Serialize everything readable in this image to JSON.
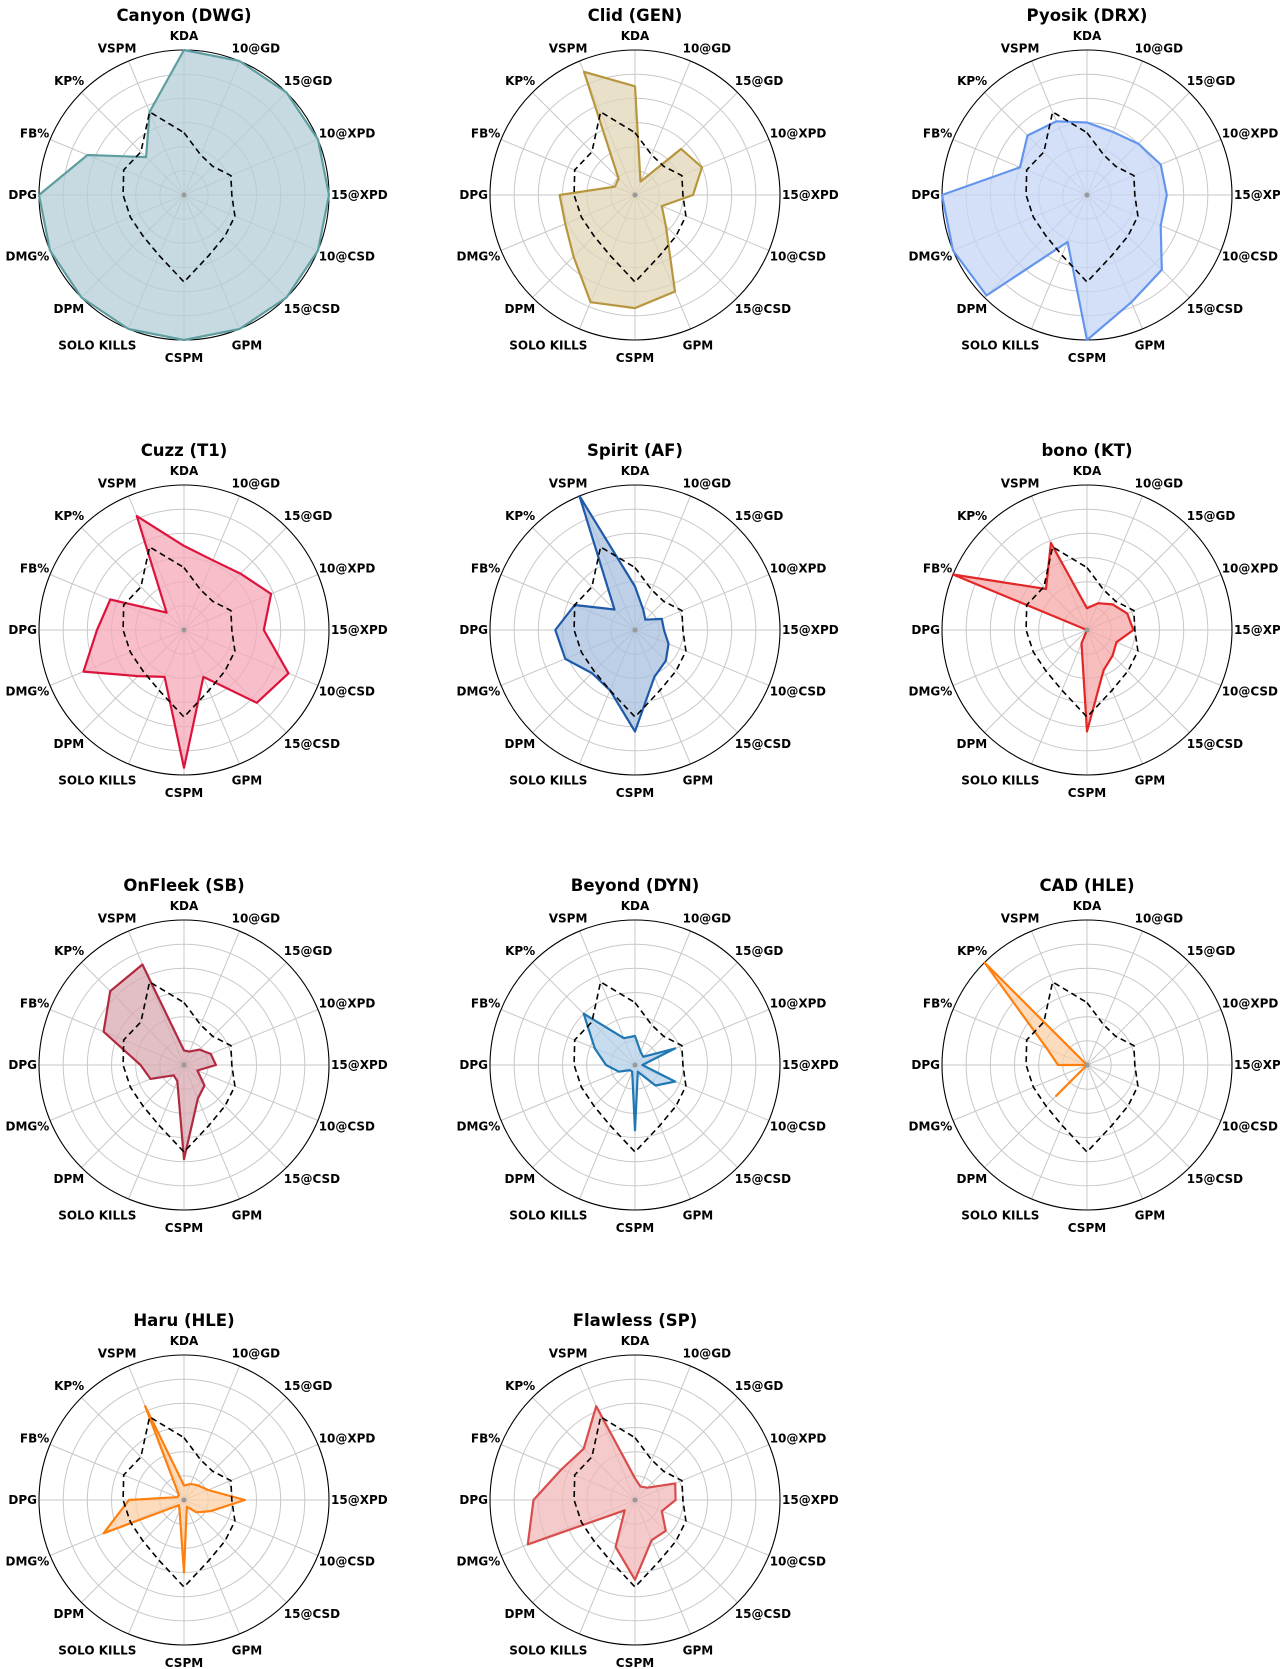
{
  "axes": [
    "KDA",
    "10@GD",
    "15@GD",
    "10@XPD",
    "15@XPD",
    "10@CSD",
    "15@CSD",
    "GPM",
    "CSPM",
    "SOLO KILLS",
    "DPM",
    "DMG%",
    "DPG",
    "FB%",
    "KP%",
    "VSPM"
  ],
  "chart_data": [
    {
      "type": "radar",
      "title": "Canyon (DWG)",
      "color": "#5f9ea0",
      "fill": "#b4cdd7",
      "values": [
        1.0,
        1.0,
        1.0,
        1.0,
        1.0,
        1.0,
        1.0,
        1.0,
        1.0,
        1.0,
        1.0,
        1.0,
        1.0,
        0.72,
        0.37,
        0.62
      ],
      "average": [
        0.43,
        0.3,
        0.28,
        0.35,
        0.33,
        0.38,
        0.4,
        0.45,
        0.6,
        0.45,
        0.4,
        0.4,
        0.42,
        0.45,
        0.42,
        0.62
      ]
    },
    {
      "type": "radar",
      "title": "Clid (GEN)",
      "color": "#b8963e",
      "fill": "#e2d5b8",
      "values": [
        0.75,
        0.1,
        0.45,
        0.5,
        0.4,
        0.2,
        0.3,
        0.72,
        0.78,
        0.8,
        0.6,
        0.52,
        0.52,
        0.15,
        0.16,
        0.92
      ],
      "average": [
        0.43,
        0.3,
        0.28,
        0.35,
        0.33,
        0.38,
        0.4,
        0.45,
        0.6,
        0.45,
        0.4,
        0.4,
        0.42,
        0.45,
        0.42,
        0.62
      ]
    },
    {
      "type": "radar",
      "title": "Pyosik (DRX)",
      "color": "#6495ed",
      "fill": "#c5d5f5",
      "values": [
        0.5,
        0.47,
        0.5,
        0.55,
        0.55,
        0.55,
        0.73,
        0.8,
        1.0,
        0.35,
        0.98,
        1.0,
        1.0,
        0.5,
        0.58,
        0.55
      ],
      "average": [
        0.43,
        0.3,
        0.28,
        0.35,
        0.33,
        0.38,
        0.4,
        0.45,
        0.6,
        0.45,
        0.4,
        0.4,
        0.42,
        0.45,
        0.42,
        0.62
      ]
    },
    {
      "type": "radar",
      "title": "Cuzz (T1)",
      "color": "#dc143c",
      "fill": "#f5a8b8",
      "values": [
        0.58,
        0.52,
        0.55,
        0.65,
        0.55,
        0.78,
        0.71,
        0.35,
        0.95,
        0.35,
        0.45,
        0.75,
        0.6,
        0.55,
        0.17,
        0.85
      ],
      "average": [
        0.43,
        0.3,
        0.28,
        0.35,
        0.33,
        0.38,
        0.4,
        0.45,
        0.6,
        0.45,
        0.4,
        0.4,
        0.42,
        0.45,
        0.42,
        0.62
      ]
    },
    {
      "type": "radar",
      "title": "Spirit (AF)",
      "color": "#1f5aa8",
      "fill": "#a8c0e0",
      "values": [
        0.3,
        0.15,
        0.1,
        0.2,
        0.2,
        0.25,
        0.3,
        0.35,
        0.7,
        0.45,
        0.42,
        0.52,
        0.55,
        0.45,
        0.2,
        1.0
      ],
      "average": [
        0.43,
        0.3,
        0.28,
        0.35,
        0.33,
        0.38,
        0.4,
        0.45,
        0.6,
        0.45,
        0.4,
        0.4,
        0.42,
        0.45,
        0.42,
        0.62
      ]
    },
    {
      "type": "radar",
      "title": "bono (KT)",
      "color": "#e32626",
      "fill": "#f5a8a8",
      "values": [
        0.15,
        0.2,
        0.25,
        0.3,
        0.32,
        0.22,
        0.25,
        0.3,
        0.7,
        0.1,
        0.0,
        0.0,
        0.0,
        1.0,
        0.4,
        0.65
      ],
      "average": [
        0.43,
        0.3,
        0.28,
        0.35,
        0.33,
        0.38,
        0.4,
        0.45,
        0.6,
        0.45,
        0.4,
        0.4,
        0.42,
        0.45,
        0.42,
        0.62
      ]
    },
    {
      "type": "radar",
      "title": "OnFleek (SB)",
      "color": "#b02a40",
      "fill": "#d8a8b2",
      "values": [
        0.1,
        0.1,
        0.15,
        0.2,
        0.22,
        0.1,
        0.2,
        0.25,
        0.65,
        0.12,
        0.1,
        0.25,
        0.3,
        0.6,
        0.72,
        0.75
      ],
      "average": [
        0.43,
        0.3,
        0.28,
        0.35,
        0.33,
        0.38,
        0.4,
        0.45,
        0.6,
        0.45,
        0.4,
        0.4,
        0.42,
        0.45,
        0.42,
        0.62
      ]
    },
    {
      "type": "radar",
      "title": "Beyond (DYN)",
      "color": "#1f77b4",
      "fill": "#b4d0ea",
      "values": [
        0.2,
        0.1,
        0.08,
        0.3,
        0.05,
        0.3,
        0.2,
        0.05,
        0.45,
        0.05,
        0.05,
        0.12,
        0.2,
        0.3,
        0.5,
        0.2
      ],
      "average": [
        0.43,
        0.3,
        0.28,
        0.35,
        0.33,
        0.38,
        0.4,
        0.45,
        0.6,
        0.45,
        0.4,
        0.4,
        0.42,
        0.45,
        0.42,
        0.62
      ]
    },
    {
      "type": "radar",
      "title": "CAD (HLE)",
      "color": "#ff7f0e",
      "fill": "#fcd0a8",
      "values": [
        0.0,
        0.0,
        0.0,
        0.0,
        0.0,
        0.0,
        0.0,
        0.0,
        0.0,
        0.0,
        0.3,
        0.0,
        0.2,
        0.3,
        1.0,
        0.0
      ],
      "average": [
        0.43,
        0.3,
        0.28,
        0.35,
        0.33,
        0.38,
        0.4,
        0.45,
        0.6,
        0.45,
        0.4,
        0.4,
        0.42,
        0.45,
        0.42,
        0.62
      ]
    },
    {
      "type": "radar",
      "title": "Haru (HLE)",
      "color": "#ff7f0e",
      "fill": "#fcd0a8",
      "values": [
        0.1,
        0.12,
        0.14,
        0.18,
        0.42,
        0.2,
        0.12,
        0.05,
        0.5,
        0.08,
        0.05,
        0.6,
        0.38,
        0.05,
        0.05,
        0.7
      ],
      "average": [
        0.43,
        0.3,
        0.28,
        0.35,
        0.33,
        0.38,
        0.4,
        0.45,
        0.6,
        0.45,
        0.4,
        0.4,
        0.42,
        0.45,
        0.42,
        0.62
      ]
    },
    {
      "type": "radar",
      "title": "Flawless (SP)",
      "color": "#d94c4c",
      "fill": "#f2b8b8",
      "values": [
        0.15,
        0.1,
        0.12,
        0.3,
        0.28,
        0.2,
        0.3,
        0.3,
        0.55,
        0.35,
        0.1,
        0.8,
        0.7,
        0.55,
        0.5,
        0.7
      ],
      "average": [
        0.43,
        0.3,
        0.28,
        0.35,
        0.33,
        0.38,
        0.4,
        0.45,
        0.6,
        0.45,
        0.4,
        0.4,
        0.42,
        0.45,
        0.42,
        0.62
      ]
    }
  ]
}
